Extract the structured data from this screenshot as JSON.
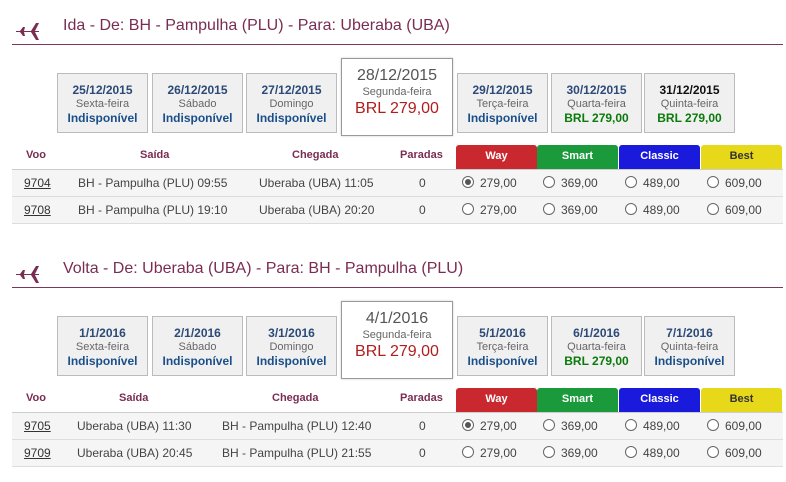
{
  "colors": {
    "way": "#c8282e",
    "smart": "#1a9a3a",
    "classic": "#1a1adc",
    "best": "#e8d81a",
    "accent": "#7a2d52"
  },
  "outbound": {
    "title": "Ida - De: BH - Pampulha (PLU) - Para: Uberaba (UBA)",
    "icon": "plane-icon",
    "dates": [
      {
        "date": "25/12/2015",
        "weekday": "Sexta-feira",
        "status": "Indisponível",
        "available": false
      },
      {
        "date": "26/12/2015",
        "weekday": "Sábado",
        "status": "Indisponível",
        "available": false
      },
      {
        "date": "27/12/2015",
        "weekday": "Domingo",
        "status": "Indisponível",
        "available": false
      },
      {
        "date": "28/12/2015",
        "weekday": "Segunda-feira",
        "status": "BRL 279,00",
        "available": true,
        "selected": true
      },
      {
        "date": "29/12/2015",
        "weekday": "Terça-feira",
        "status": "Indisponível",
        "available": false
      },
      {
        "date": "30/12/2015",
        "weekday": "Quarta-feira",
        "status": "BRL 279,00",
        "available": true
      },
      {
        "date": "31/12/2015",
        "weekday": "Quinta-feira",
        "status": "BRL 279,00",
        "available": true
      }
    ],
    "headers": {
      "voo": "Voo",
      "saida": "Saída",
      "chegada": "Chegada",
      "paradas": "Paradas",
      "way": "Way",
      "smart": "Smart",
      "classic": "Classic",
      "best": "Best"
    },
    "flights": [
      {
        "number": "9704",
        "departure": "BH - Pampulha (PLU) 09:55",
        "arrival": "Uberaba (UBA) 11:05",
        "stops": "0",
        "way": "279,00",
        "smart": "369,00",
        "classic": "489,00",
        "best": "609,00",
        "selected": "way"
      },
      {
        "number": "9708",
        "departure": "BH - Pampulha (PLU) 19:10",
        "arrival": "Uberaba (UBA) 20:20",
        "stops": "0",
        "way": "279,00",
        "smart": "369,00",
        "classic": "489,00",
        "best": "609,00",
        "selected": ""
      }
    ]
  },
  "inbound": {
    "title": "Volta - De: Uberaba (UBA) - Para: BH - Pampulha (PLU)",
    "icon": "plane-icon",
    "dates": [
      {
        "date": "1/1/2016",
        "weekday": "Sexta-feira",
        "status": "Indisponível",
        "available": false
      },
      {
        "date": "2/1/2016",
        "weekday": "Sábado",
        "status": "Indisponível",
        "available": false
      },
      {
        "date": "3/1/2016",
        "weekday": "Domingo",
        "status": "Indisponível",
        "available": false
      },
      {
        "date": "4/1/2016",
        "weekday": "Segunda-feira",
        "status": "BRL 279,00",
        "available": true,
        "selected": true
      },
      {
        "date": "5/1/2016",
        "weekday": "Terça-feira",
        "status": "Indisponível",
        "available": false
      },
      {
        "date": "6/1/2016",
        "weekday": "Quarta-feira",
        "status": "BRL 279,00",
        "available": true
      },
      {
        "date": "7/1/2016",
        "weekday": "Quinta-feira",
        "status": "Indisponível",
        "available": false
      }
    ],
    "headers": {
      "voo": "Voo",
      "saida": "Saída",
      "chegada": "Chegada",
      "paradas": "Paradas",
      "way": "Way",
      "smart": "Smart",
      "classic": "Classic",
      "best": "Best"
    },
    "flights": [
      {
        "number": "9705",
        "departure": "Uberaba (UBA) 11:30",
        "arrival": "BH - Pampulha (PLU) 12:40",
        "stops": "0",
        "way": "279,00",
        "smart": "369,00",
        "classic": "489,00",
        "best": "609,00",
        "selected": "way"
      },
      {
        "number": "9709",
        "departure": "Uberaba (UBA) 20:45",
        "arrival": "BH - Pampulha (PLU) 21:55",
        "stops": "0",
        "way": "279,00",
        "smart": "369,00",
        "classic": "489,00",
        "best": "609,00",
        "selected": ""
      }
    ]
  }
}
